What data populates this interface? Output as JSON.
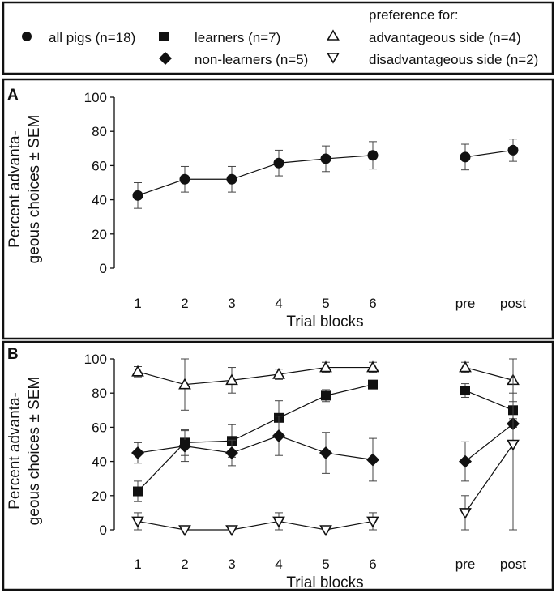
{
  "legend": {
    "all_pigs": "all pigs (n=18)",
    "learners": "learners (n=7)",
    "non_learners": "non-learners (n=5)",
    "preference_header": "preference for:",
    "advantageous": "advantageous side (n=4)",
    "disadvantageous": "disadvantageous side (n=2)"
  },
  "chart_data": [
    {
      "type": "line",
      "panel": "A",
      "ylabel_line1": "Percent advanta-",
      "ylabel_line2": "geous choices ± SEM",
      "xlabel": "Trial blocks",
      "ylim": [
        0,
        100
      ],
      "yticks": [
        0,
        20,
        40,
        60,
        80,
        100
      ],
      "categories": [
        "1",
        "2",
        "3",
        "4",
        "5",
        "6",
        "pre",
        "post"
      ],
      "series": [
        {
          "name": "all pigs (n=18)",
          "marker": "circle",
          "values": [
            42.5,
            52,
            52,
            61.5,
            64,
            66,
            65,
            69
          ],
          "sem": [
            7.5,
            7.5,
            7.5,
            7.5,
            7.5,
            8,
            7.5,
            6.5
          ],
          "segments": [
            [
              0,
              5
            ],
            [
              6,
              7
            ]
          ]
        }
      ]
    },
    {
      "type": "line",
      "panel": "B",
      "ylabel_line1": "Percent advanta-",
      "ylabel_line2": "geous choices ± SEM",
      "xlabel": "Trial blocks",
      "ylim": [
        0,
        100
      ],
      "yticks": [
        0,
        20,
        40,
        60,
        80,
        100
      ],
      "categories": [
        "1",
        "2",
        "3",
        "4",
        "5",
        "6",
        "pre",
        "post"
      ],
      "series": [
        {
          "name": "advantageous side (n=4)",
          "marker": "triangle-up",
          "values": [
            92.5,
            85,
            87.5,
            91,
            95,
            95,
            95,
            87.5
          ],
          "sem": [
            3,
            15,
            7.5,
            3,
            3,
            3,
            3,
            12.5
          ],
          "segments": [
            [
              0,
              5
            ],
            [
              6,
              7
            ]
          ]
        },
        {
          "name": "learners (n=7)",
          "marker": "square",
          "values": [
            22.5,
            51,
            52,
            65.5,
            78.5,
            85,
            81.5,
            70
          ],
          "sem": [
            6,
            7.5,
            9.5,
            10,
            3.5,
            1,
            4,
            10
          ],
          "segments": [
            [
              0,
              5
            ],
            [
              6,
              7
            ]
          ]
        },
        {
          "name": "non-learners (n=5)",
          "marker": "diamond",
          "values": [
            45,
            49,
            45,
            55,
            45,
            41,
            40,
            62
          ],
          "sem": [
            6,
            9,
            7.5,
            11.5,
            12,
            12.5,
            11.5,
            3
          ],
          "segments": [
            [
              0,
              5
            ],
            [
              6,
              7
            ]
          ]
        },
        {
          "name": "disadvantageous side (n=2)",
          "marker": "triangle-down",
          "values": [
            5,
            0,
            0,
            5,
            0,
            5,
            10,
            50
          ],
          "sem": [
            5,
            0,
            0,
            5,
            0,
            5,
            10,
            50
          ],
          "segments": [
            [
              0,
              5
            ],
            [
              6,
              7
            ]
          ]
        }
      ]
    }
  ]
}
